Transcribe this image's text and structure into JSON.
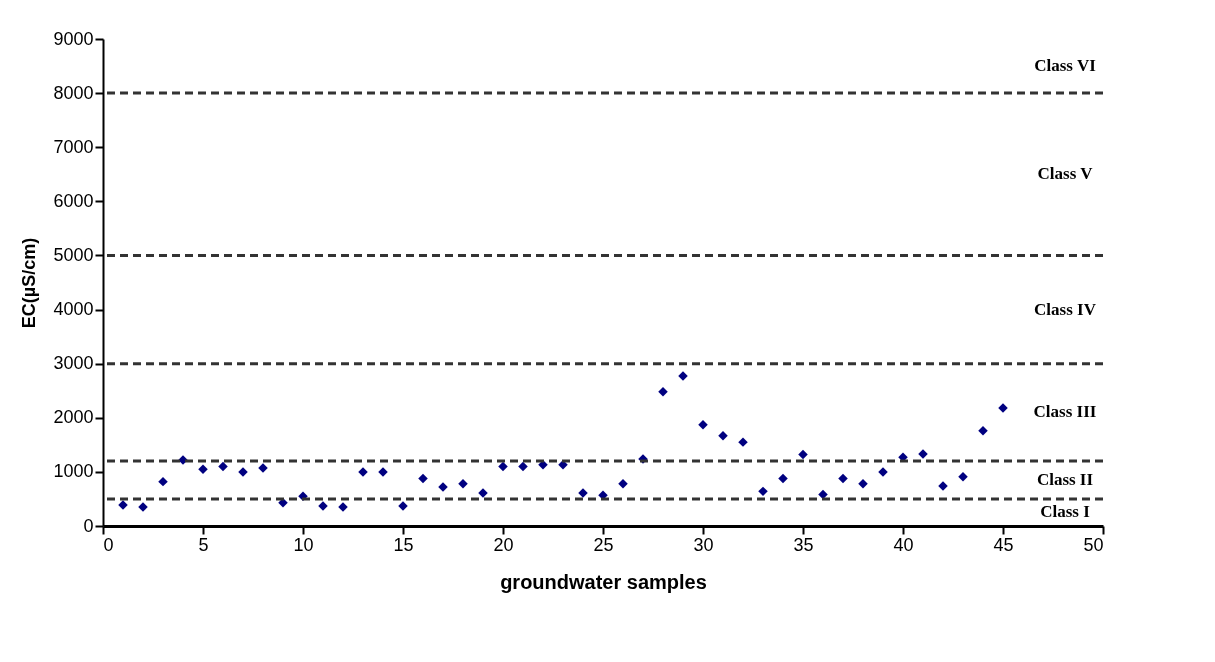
{
  "chart_data": {
    "type": "scatter",
    "xlabel": "groundwater samples",
    "ylabel": "EC(µS/cm)",
    "x": [
      1,
      2,
      3,
      4,
      5,
      6,
      7,
      8,
      9,
      10,
      11,
      12,
      13,
      14,
      15,
      16,
      17,
      18,
      19,
      20,
      21,
      22,
      23,
      24,
      25,
      26,
      27,
      28,
      29,
      30,
      31,
      32,
      33,
      34,
      35,
      36,
      37,
      38,
      39,
      40,
      41,
      42,
      43,
      44,
      45
    ],
    "series": [
      {
        "color": "#000080",
        "values": [
          390,
          350,
          820,
          1220,
          1050,
          1100,
          1000,
          1070,
          430,
          550,
          370,
          350,
          1000,
          1000,
          370,
          880,
          720,
          780,
          610,
          1100,
          1100,
          1130,
          1130,
          610,
          570,
          780,
          1240,
          2480,
          2770,
          1870,
          1670,
          1550,
          640,
          880,
          1320,
          580,
          880,
          780,
          1000,
          1270,
          1330,
          740,
          910,
          1760,
          2180
        ]
      }
    ],
    "xlim": [
      0,
      50
    ],
    "xticks": [
      0,
      5,
      10,
      15,
      20,
      25,
      30,
      35,
      40,
      45,
      50
    ],
    "ylim": [
      0,
      9000
    ],
    "yticks": [
      0,
      1000,
      2000,
      3000,
      4000,
      5000,
      6000,
      7000,
      8000,
      9000
    ],
    "grid": false,
    "marker": "diamond",
    "ref_lines": [
      {
        "axis": "y",
        "value": 500,
        "color": "#333333",
        "line_style": "dashed"
      },
      {
        "axis": "y",
        "value": 1200,
        "color": "#333333",
        "line_style": "dashed"
      },
      {
        "axis": "y",
        "value": 3000,
        "color": "#333333",
        "line_style": "dashed"
      },
      {
        "axis": "y",
        "value": 5000,
        "color": "#333333",
        "line_style": "dashed"
      },
      {
        "axis": "y",
        "value": 8000,
        "color": "#333333",
        "line_style": "dashed"
      }
    ],
    "annotations": [
      "Class VI",
      "Class V",
      "Class IV",
      "Class III",
      "Class II",
      "Class I"
    ]
  }
}
